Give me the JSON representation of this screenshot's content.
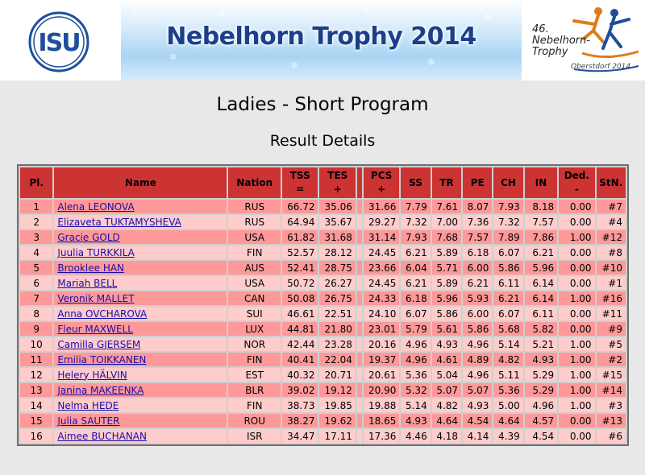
{
  "header": {
    "banner_title": "Nebelhorn Trophy 2014",
    "isu_text": "ISU",
    "event_logo_line1": "46.",
    "event_logo_line2": "Nebelhorn-",
    "event_logo_line3": "Trophy",
    "event_logo_city": "Oberstdorf 2014"
  },
  "page": {
    "title": "Ladies - Short Program",
    "subtitle": "Result Details"
  },
  "table": {
    "headers": {
      "pl": "Pl.",
      "name": "Name",
      "nation": "Nation",
      "tss": "TSS",
      "tss_sub": "=",
      "tes": "TES",
      "tes_sub": "+",
      "pcs": "PCS",
      "pcs_sub": "+",
      "ss": "SS",
      "tr": "TR",
      "pe": "PE",
      "ch": "CH",
      "in": "IN",
      "ded": "Ded.",
      "ded_sub": "-",
      "stn": "StN."
    },
    "rows": [
      {
        "pl": "1",
        "name": "Alena LEONOVA",
        "nation": "RUS",
        "tss": "66.72",
        "tes": "35.06",
        "pcs": "31.66",
        "ss": "7.79",
        "tr": "7.61",
        "pe": "8.07",
        "ch": "7.93",
        "in": "8.18",
        "ded": "0.00",
        "stn": "#7"
      },
      {
        "pl": "2",
        "name": "Elizaveta TUKTAMYSHEVA",
        "nation": "RUS",
        "tss": "64.94",
        "tes": "35.67",
        "pcs": "29.27",
        "ss": "7.32",
        "tr": "7.00",
        "pe": "7.36",
        "ch": "7.32",
        "in": "7.57",
        "ded": "0.00",
        "stn": "#4"
      },
      {
        "pl": "3",
        "name": "Gracie GOLD",
        "nation": "USA",
        "tss": "61.82",
        "tes": "31.68",
        "pcs": "31.14",
        "ss": "7.93",
        "tr": "7.68",
        "pe": "7.57",
        "ch": "7.89",
        "in": "7.86",
        "ded": "1.00",
        "stn": "#12"
      },
      {
        "pl": "4",
        "name": "Juulia TURKKILA",
        "nation": "FIN",
        "tss": "52.57",
        "tes": "28.12",
        "pcs": "24.45",
        "ss": "6.21",
        "tr": "5.89",
        "pe": "6.18",
        "ch": "6.07",
        "in": "6.21",
        "ded": "0.00",
        "stn": "#8"
      },
      {
        "pl": "5",
        "name": "Brooklee HAN",
        "nation": "AUS",
        "tss": "52.41",
        "tes": "28.75",
        "pcs": "23.66",
        "ss": "6.04",
        "tr": "5.71",
        "pe": "6.00",
        "ch": "5.86",
        "in": "5.96",
        "ded": "0.00",
        "stn": "#10"
      },
      {
        "pl": "6",
        "name": "Mariah BELL",
        "nation": "USA",
        "tss": "50.72",
        "tes": "26.27",
        "pcs": "24.45",
        "ss": "6.21",
        "tr": "5.89",
        "pe": "6.21",
        "ch": "6.11",
        "in": "6.14",
        "ded": "0.00",
        "stn": "#1"
      },
      {
        "pl": "7",
        "name": "Veronik MALLET",
        "nation": "CAN",
        "tss": "50.08",
        "tes": "26.75",
        "pcs": "24.33",
        "ss": "6.18",
        "tr": "5.96",
        "pe": "5.93",
        "ch": "6.21",
        "in": "6.14",
        "ded": "1.00",
        "stn": "#16"
      },
      {
        "pl": "8",
        "name": "Anna OVCHAROVA",
        "nation": "SUI",
        "tss": "46.61",
        "tes": "22.51",
        "pcs": "24.10",
        "ss": "6.07",
        "tr": "5.86",
        "pe": "6.00",
        "ch": "6.07",
        "in": "6.11",
        "ded": "0.00",
        "stn": "#11"
      },
      {
        "pl": "9",
        "name": "Fleur MAXWELL",
        "nation": "LUX",
        "tss": "44.81",
        "tes": "21.80",
        "pcs": "23.01",
        "ss": "5.79",
        "tr": "5.61",
        "pe": "5.86",
        "ch": "5.68",
        "in": "5.82",
        "ded": "0.00",
        "stn": "#9"
      },
      {
        "pl": "10",
        "name": "Camilla GJERSEM",
        "nation": "NOR",
        "tss": "42.44",
        "tes": "23.28",
        "pcs": "20.16",
        "ss": "4.96",
        "tr": "4.93",
        "pe": "4.96",
        "ch": "5.14",
        "in": "5.21",
        "ded": "1.00",
        "stn": "#5"
      },
      {
        "pl": "11",
        "name": "Emilia TOIKKANEN",
        "nation": "FIN",
        "tss": "40.41",
        "tes": "22.04",
        "pcs": "19.37",
        "ss": "4.96",
        "tr": "4.61",
        "pe": "4.89",
        "ch": "4.82",
        "in": "4.93",
        "ded": "1.00",
        "stn": "#2"
      },
      {
        "pl": "12",
        "name": "Helery HÄLVIN",
        "nation": "EST",
        "tss": "40.32",
        "tes": "20.71",
        "pcs": "20.61",
        "ss": "5.36",
        "tr": "5.04",
        "pe": "4.96",
        "ch": "5.11",
        "in": "5.29",
        "ded": "1.00",
        "stn": "#15"
      },
      {
        "pl": "13",
        "name": "Janina MAKEENKA",
        "nation": "BLR",
        "tss": "39.02",
        "tes": "19.12",
        "pcs": "20.90",
        "ss": "5.32",
        "tr": "5.07",
        "pe": "5.07",
        "ch": "5.36",
        "in": "5.29",
        "ded": "1.00",
        "stn": "#14"
      },
      {
        "pl": "14",
        "name": "Nelma HEDE",
        "nation": "FIN",
        "tss": "38.73",
        "tes": "19.85",
        "pcs": "19.88",
        "ss": "5.14",
        "tr": "4.82",
        "pe": "4.93",
        "ch": "5.00",
        "in": "4.96",
        "ded": "1.00",
        "stn": "#3"
      },
      {
        "pl": "15",
        "name": "Julia SAUTER",
        "nation": "ROU",
        "tss": "38.27",
        "tes": "19.62",
        "pcs": "18.65",
        "ss": "4.93",
        "tr": "4.64",
        "pe": "4.54",
        "ch": "4.64",
        "in": "4.57",
        "ded": "0.00",
        "stn": "#13"
      },
      {
        "pl": "16",
        "name": "Aimee BUCHANAN",
        "nation": "ISR",
        "tss": "34.47",
        "tes": "17.11",
        "pcs": "17.36",
        "ss": "4.46",
        "tr": "4.18",
        "pe": "4.14",
        "ch": "4.39",
        "in": "4.54",
        "ded": "0.00",
        "stn": "#6"
      }
    ]
  }
}
